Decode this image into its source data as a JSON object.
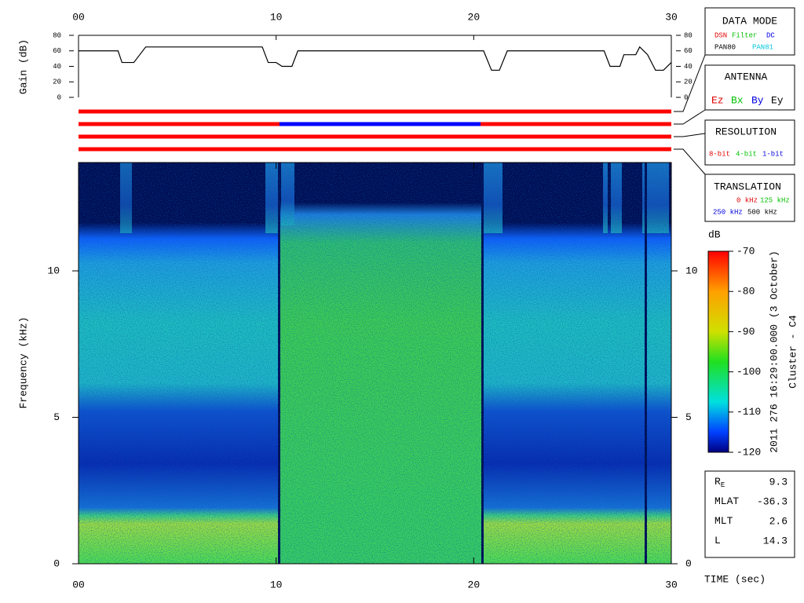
{
  "chart_data": [
    {
      "type": "line",
      "ylabel": "Gain (dB)",
      "color": "#000000",
      "xlim": [
        0,
        30
      ],
      "xticks": [
        {
          "value": 0,
          "label": "00"
        },
        10,
        20,
        30
      ],
      "ylim": [
        0,
        80
      ],
      "yticks": [
        0,
        20,
        40,
        60,
        80
      ],
      "x": [
        0,
        2.0,
        2.2,
        2.8,
        3.4,
        9.3,
        9.6,
        10.0,
        10.3,
        10.8,
        11.1,
        20.5,
        20.9,
        21.3,
        21.7,
        26.6,
        26.9,
        27.4,
        27.6,
        28.2,
        28.4,
        28.8,
        29.2,
        29.6,
        30
      ],
      "values": [
        60,
        60,
        45,
        45,
        65,
        65,
        45,
        45,
        40,
        40,
        60,
        60,
        35,
        35,
        60,
        60,
        40,
        40,
        55,
        55,
        65,
        55,
        35,
        35,
        45
      ]
    },
    {
      "type": "spectrogram",
      "xlabel": "TIME (sec)",
      "ylabel": "Frequency (kHz)",
      "xlim": [
        0,
        30
      ],
      "xticks": [
        {
          "value": 0,
          "label": "00"
        },
        10,
        20,
        30
      ],
      "ylim": [
        0,
        13.7
      ],
      "yticks": [
        0,
        5,
        10
      ],
      "colorbar": {
        "label": "dB",
        "lim": [
          -120,
          -70
        ],
        "ticks": [
          -70,
          -80,
          -90,
          -100,
          -110,
          -120
        ]
      }
    }
  ],
  "data_mode": {
    "title": "DATA MODE",
    "items": [
      "DSN",
      "Filter",
      "DC",
      "PAN80",
      "PAN81"
    ]
  },
  "antenna": {
    "title": "ANTENNA",
    "items": [
      "Ez",
      "Bx",
      "By",
      "Ey"
    ]
  },
  "resolution": {
    "title": "RESOLUTION",
    "items": [
      "8-bit",
      "4-bit",
      "1-bit"
    ]
  },
  "translation": {
    "title": "TRANSLATION",
    "items": [
      "0 kHz",
      "125 kHz",
      "250 kHz",
      "500 kHz"
    ]
  },
  "timestamp": "2011 276 16:29:00.000 (3 October)",
  "spacecraft": "Cluster - C4",
  "ephemeris": [
    {
      "label": "R",
      "subscript": "E",
      "value": 9.3
    },
    {
      "label": "MLAT",
      "value": -36.3
    },
    {
      "label": "MLT",
      "value": 2.6
    },
    {
      "label": "L",
      "value": 14.3
    }
  ]
}
